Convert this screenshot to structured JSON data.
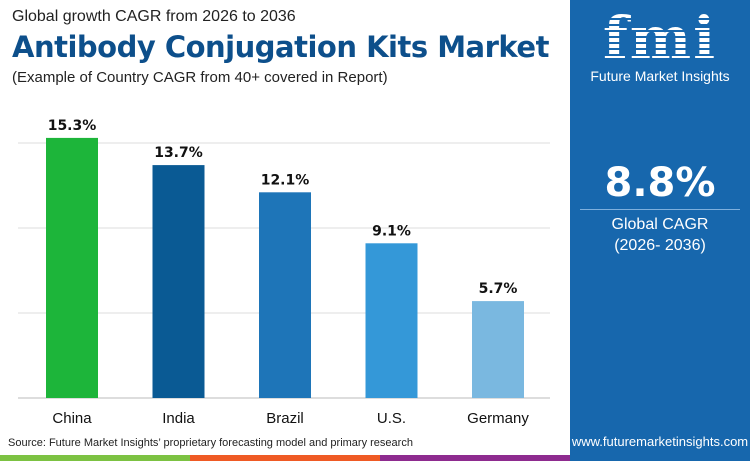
{
  "header": {
    "subtitle": "Global growth CAGR from 2026 to 2036",
    "title": "Antibody Conjugation Kits Market",
    "note": "(Example of Country CAGR from 40+ covered in Report)"
  },
  "chart_data": {
    "type": "bar",
    "categories": [
      "China",
      "India",
      "Brazil",
      "U.S.",
      "Germany"
    ],
    "values": [
      15.3,
      13.7,
      12.1,
      9.1,
      5.7
    ],
    "labels": [
      "15.3%",
      "13.7%",
      "12.1%",
      "9.1%",
      "5.7%"
    ],
    "colors": [
      "#1db53a",
      "#0a5a94",
      "#1e75b8",
      "#3498d8",
      "#7ab8e0"
    ],
    "ylim": [
      0,
      15
    ],
    "grid": true,
    "gridlines": [
      5,
      10,
      15
    ]
  },
  "panel": {
    "logo_text": "fmi",
    "brand": "Future Market Insights",
    "cagr": "8.8%",
    "cagr_label": "Global CAGR",
    "cagr_period": "(2026- 2036)",
    "url": "www.futuremarketinsights.com",
    "color": "#1767ad"
  },
  "footer": {
    "source": "Source: Future Market Insights’ proprietary forecasting model and primary research",
    "stripe_colors": [
      "#7cc242",
      "#ef5a24",
      "#8e2b8f"
    ]
  }
}
